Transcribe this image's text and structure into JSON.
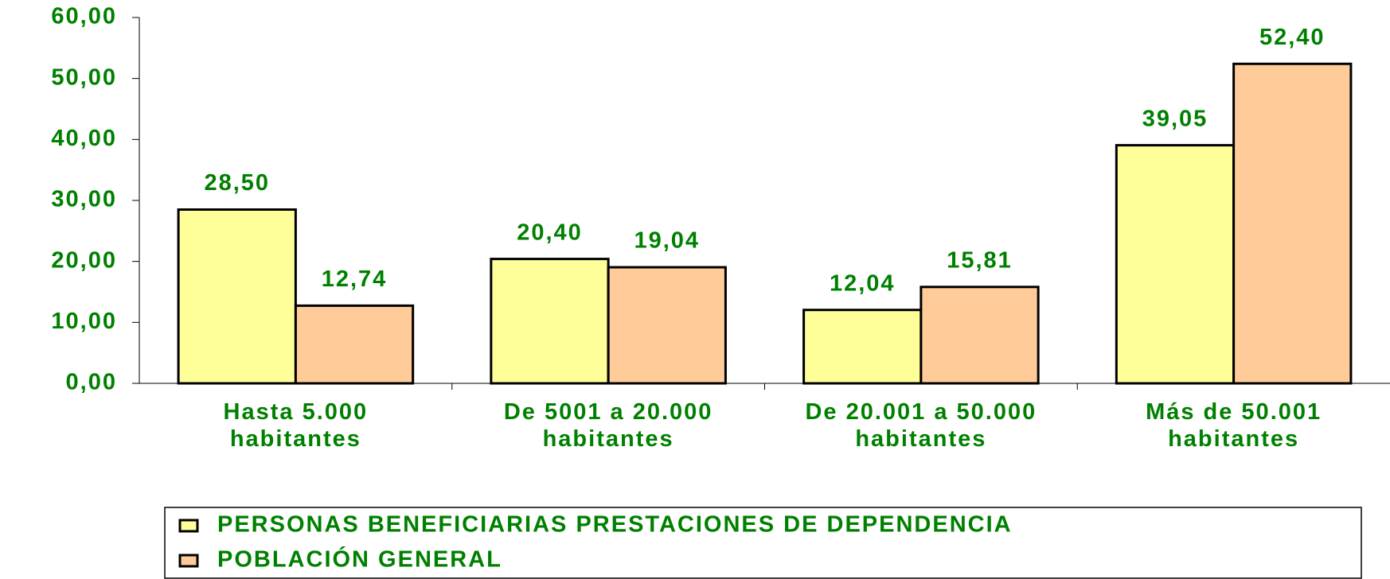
{
  "chart_data": {
    "type": "bar",
    "categories": [
      "Hasta 5.000 habitantes",
      "De 5001 a 20.000 habitantes",
      "De 20.001 a 50.000 habitantes",
      "Más de 50.001 habitantes"
    ],
    "series": [
      {
        "name": "PERSONAS BENEFICIARIAS PRESTACIONES DE DEPENDENCIA",
        "color": "#ffff99",
        "values": [
          28.5,
          20.4,
          12.04,
          39.05
        ],
        "value_labels": [
          "28,50",
          "20,40",
          "12,04",
          "39,05"
        ]
      },
      {
        "name": "POBLACIÓN GENERAL",
        "color": "#ffcc99",
        "values": [
          12.74,
          19.04,
          15.81,
          52.4
        ],
        "value_labels": [
          "12,74",
          "19,04",
          "15,81",
          "52,40"
        ]
      }
    ],
    "ylim": [
      0,
      60
    ],
    "yticks": [
      {
        "value": 0,
        "label": "0,00"
      },
      {
        "value": 10,
        "label": "10,00"
      },
      {
        "value": 20,
        "label": "20,00"
      },
      {
        "value": 30,
        "label": "30,00"
      },
      {
        "value": 40,
        "label": "40,00"
      },
      {
        "value": 50,
        "label": "50,00"
      },
      {
        "value": 60,
        "label": "60,00"
      }
    ],
    "legend": "bottom"
  }
}
